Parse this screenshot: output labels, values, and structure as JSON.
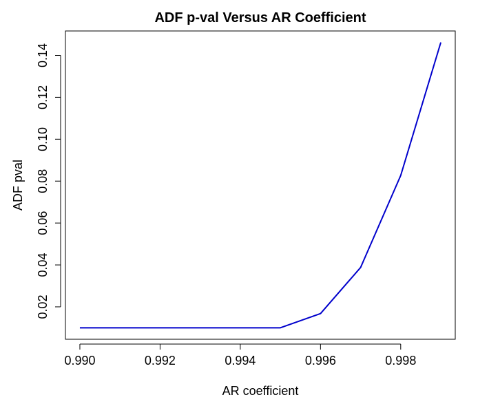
{
  "chart_data": {
    "type": "line",
    "title": "ADF p-val Versus AR Coefficient",
    "xlabel": "AR coefficient",
    "ylabel": "ADF pval",
    "x": [
      0.99,
      0.991,
      0.992,
      0.993,
      0.994,
      0.995,
      0.996,
      0.997,
      0.998,
      0.999
    ],
    "series": [
      {
        "values": [
          0.01,
          0.01,
          0.01,
          0.01,
          0.01,
          0.01,
          0.0168,
          0.0388,
          0.0827,
          0.1462
        ],
        "color": "#0000cc"
      }
    ],
    "xlim": [
      0.98964,
      0.99936
    ],
    "ylim": [
      0.00454,
      0.15166
    ],
    "x_ticks": [
      "0.990",
      "0.992",
      "0.994",
      "0.996",
      "0.998"
    ],
    "x_tick_values": [
      0.99,
      0.992,
      0.994,
      0.996,
      0.998
    ],
    "y_ticks": [
      "0.02",
      "0.04",
      "0.06",
      "0.08",
      "0.10",
      "0.12",
      "0.14"
    ],
    "y_tick_values": [
      0.02,
      0.04,
      0.06,
      0.08,
      0.1,
      0.12,
      0.14
    ],
    "grid": false,
    "legend": "none"
  }
}
